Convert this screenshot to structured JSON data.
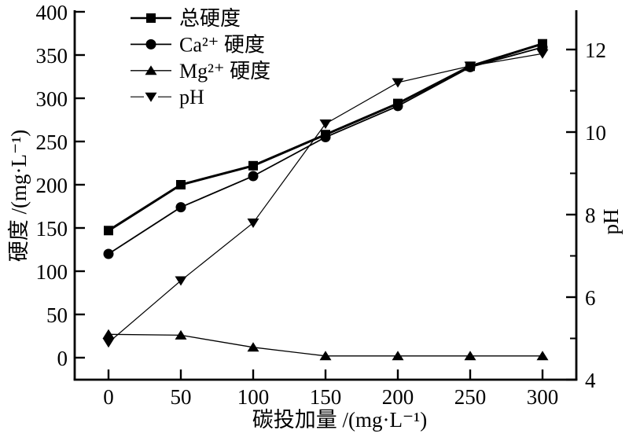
{
  "figure": {
    "background_color": "#ffffff",
    "line_color": "#000000",
    "text_color": "#000000"
  },
  "chart_data": {
    "type": "line",
    "title": "",
    "xlabel": "碳投加量 /(mg·L⁻¹)",
    "ylabel_left": "硬度 /(mg·L⁻¹)",
    "ylabel_right": "pH",
    "x": [
      0,
      50,
      100,
      150,
      200,
      250,
      300
    ],
    "xticks": [
      0,
      50,
      100,
      150,
      200,
      250,
      300
    ],
    "yticks_left": [
      0,
      50,
      100,
      150,
      200,
      250,
      300,
      350,
      400
    ],
    "yticks_right_major": [
      4,
      6,
      8,
      10,
      12
    ],
    "yticks_right_minor": [
      5,
      7,
      9,
      11
    ],
    "xlim": [
      0,
      300
    ],
    "ylim_left": [
      0,
      400
    ],
    "ylim_right": [
      4,
      12
    ],
    "grid": false,
    "legend_position": "top-left-inside",
    "series": [
      {
        "id": "total-hardness",
        "name": "总硬度",
        "marker": "square",
        "axis": "left",
        "values": [
          147,
          200,
          222,
          258,
          294,
          337,
          363
        ]
      },
      {
        "id": "ca-hardness",
        "name": "Ca²⁺ 硬度",
        "marker": "circle",
        "axis": "left",
        "values": [
          120,
          174,
          210,
          255,
          291,
          336,
          359
        ]
      },
      {
        "id": "mg-hardness",
        "name": "Mg²⁺ 硬度",
        "marker": "triangle-up",
        "axis": "left",
        "values": [
          27,
          26,
          12,
          2,
          2,
          2,
          2
        ]
      },
      {
        "id": "ph",
        "name": "pH",
        "marker": "triangle-down",
        "axis": "right",
        "values": [
          4.9,
          6.4,
          7.8,
          10.2,
          11.2,
          11.6,
          11.9
        ]
      }
    ]
  }
}
